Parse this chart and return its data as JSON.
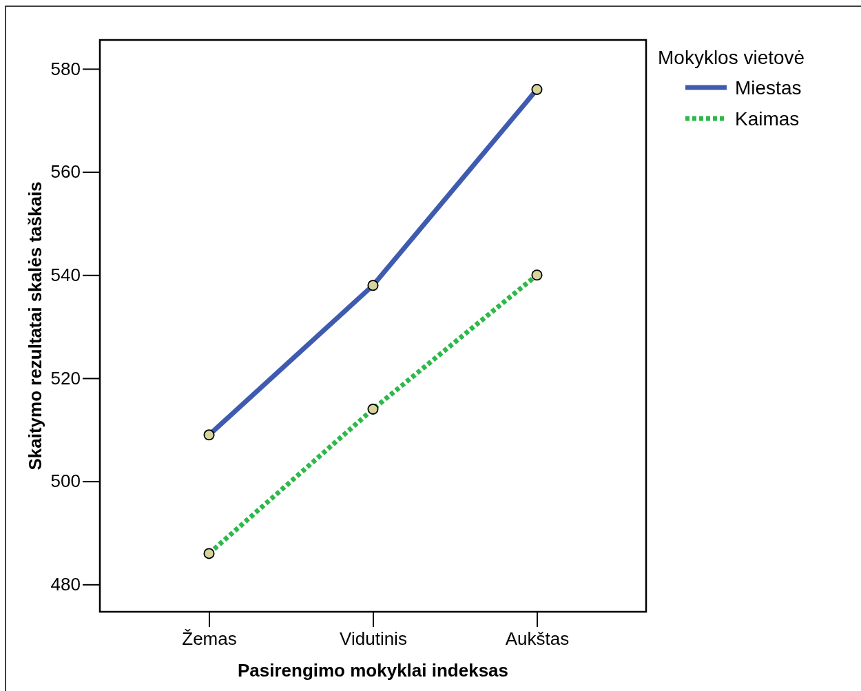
{
  "chart_data": {
    "type": "line",
    "xlabel": "Pasirengimo mokyklai indeksas",
    "ylabel": "Skaitymo rezultatai skalės taškais",
    "legend_title": "Mokyklos vietovė",
    "categories": [
      "Žemas",
      "Vidutinis",
      "Aukštas"
    ],
    "series": [
      {
        "name": "Miestas",
        "color": "#3f5bb0",
        "line_style": "solid",
        "values": [
          509,
          538,
          576
        ]
      },
      {
        "name": "Kaimas",
        "color": "#2db84a",
        "line_style": "dotted",
        "values": [
          486,
          514,
          540
        ]
      }
    ],
    "ylim": [
      474.7,
      585.6
    ],
    "yticks": [
      480,
      500,
      520,
      540,
      560,
      580
    ],
    "marker": "circle",
    "legend": "top right",
    "grid": false
  }
}
